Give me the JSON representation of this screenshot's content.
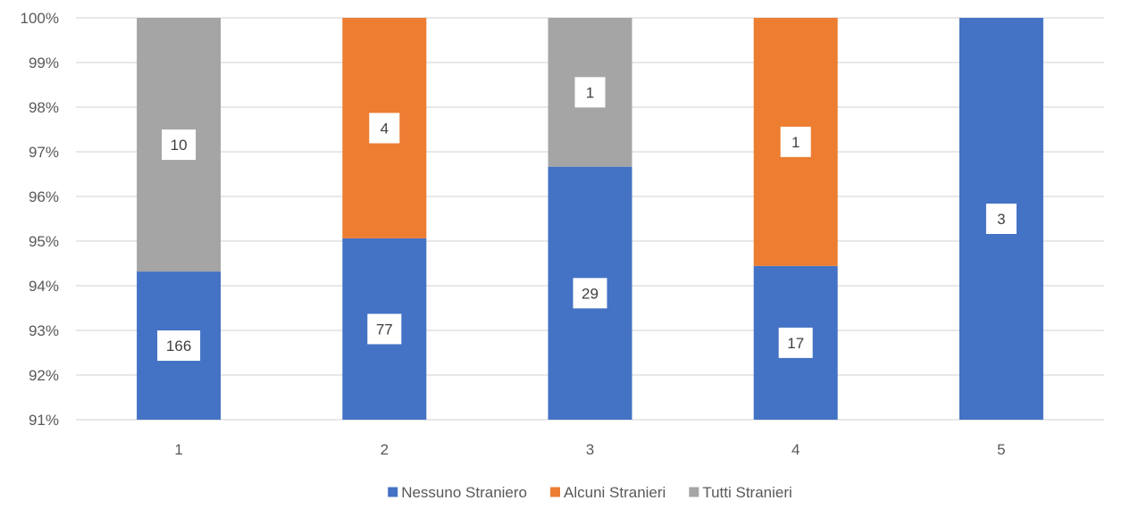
{
  "chart_data": {
    "type": "bar",
    "stacked": "percent",
    "title": "",
    "xlabel": "",
    "ylabel": "",
    "categories": [
      "1",
      "2",
      "3",
      "4",
      "5"
    ],
    "ylim": [
      91,
      100
    ],
    "yticks": [
      "91%",
      "92%",
      "93%",
      "94%",
      "95%",
      "96%",
      "97%",
      "98%",
      "99%",
      "100%"
    ],
    "series": [
      {
        "name": "Nessuno Straniero",
        "color": "#4472C4",
        "values": [
          166,
          77,
          29,
          17,
          3
        ]
      },
      {
        "name": "Alcuni Stranieri",
        "color": "#ED7D31",
        "values": [
          0,
          4,
          0,
          1,
          0
        ]
      },
      {
        "name": "Tutti Stranieri",
        "color": "#A5A5A5",
        "values": [
          10,
          0,
          1,
          0,
          0
        ]
      }
    ],
    "grid": true,
    "legend_position": "bottom"
  }
}
